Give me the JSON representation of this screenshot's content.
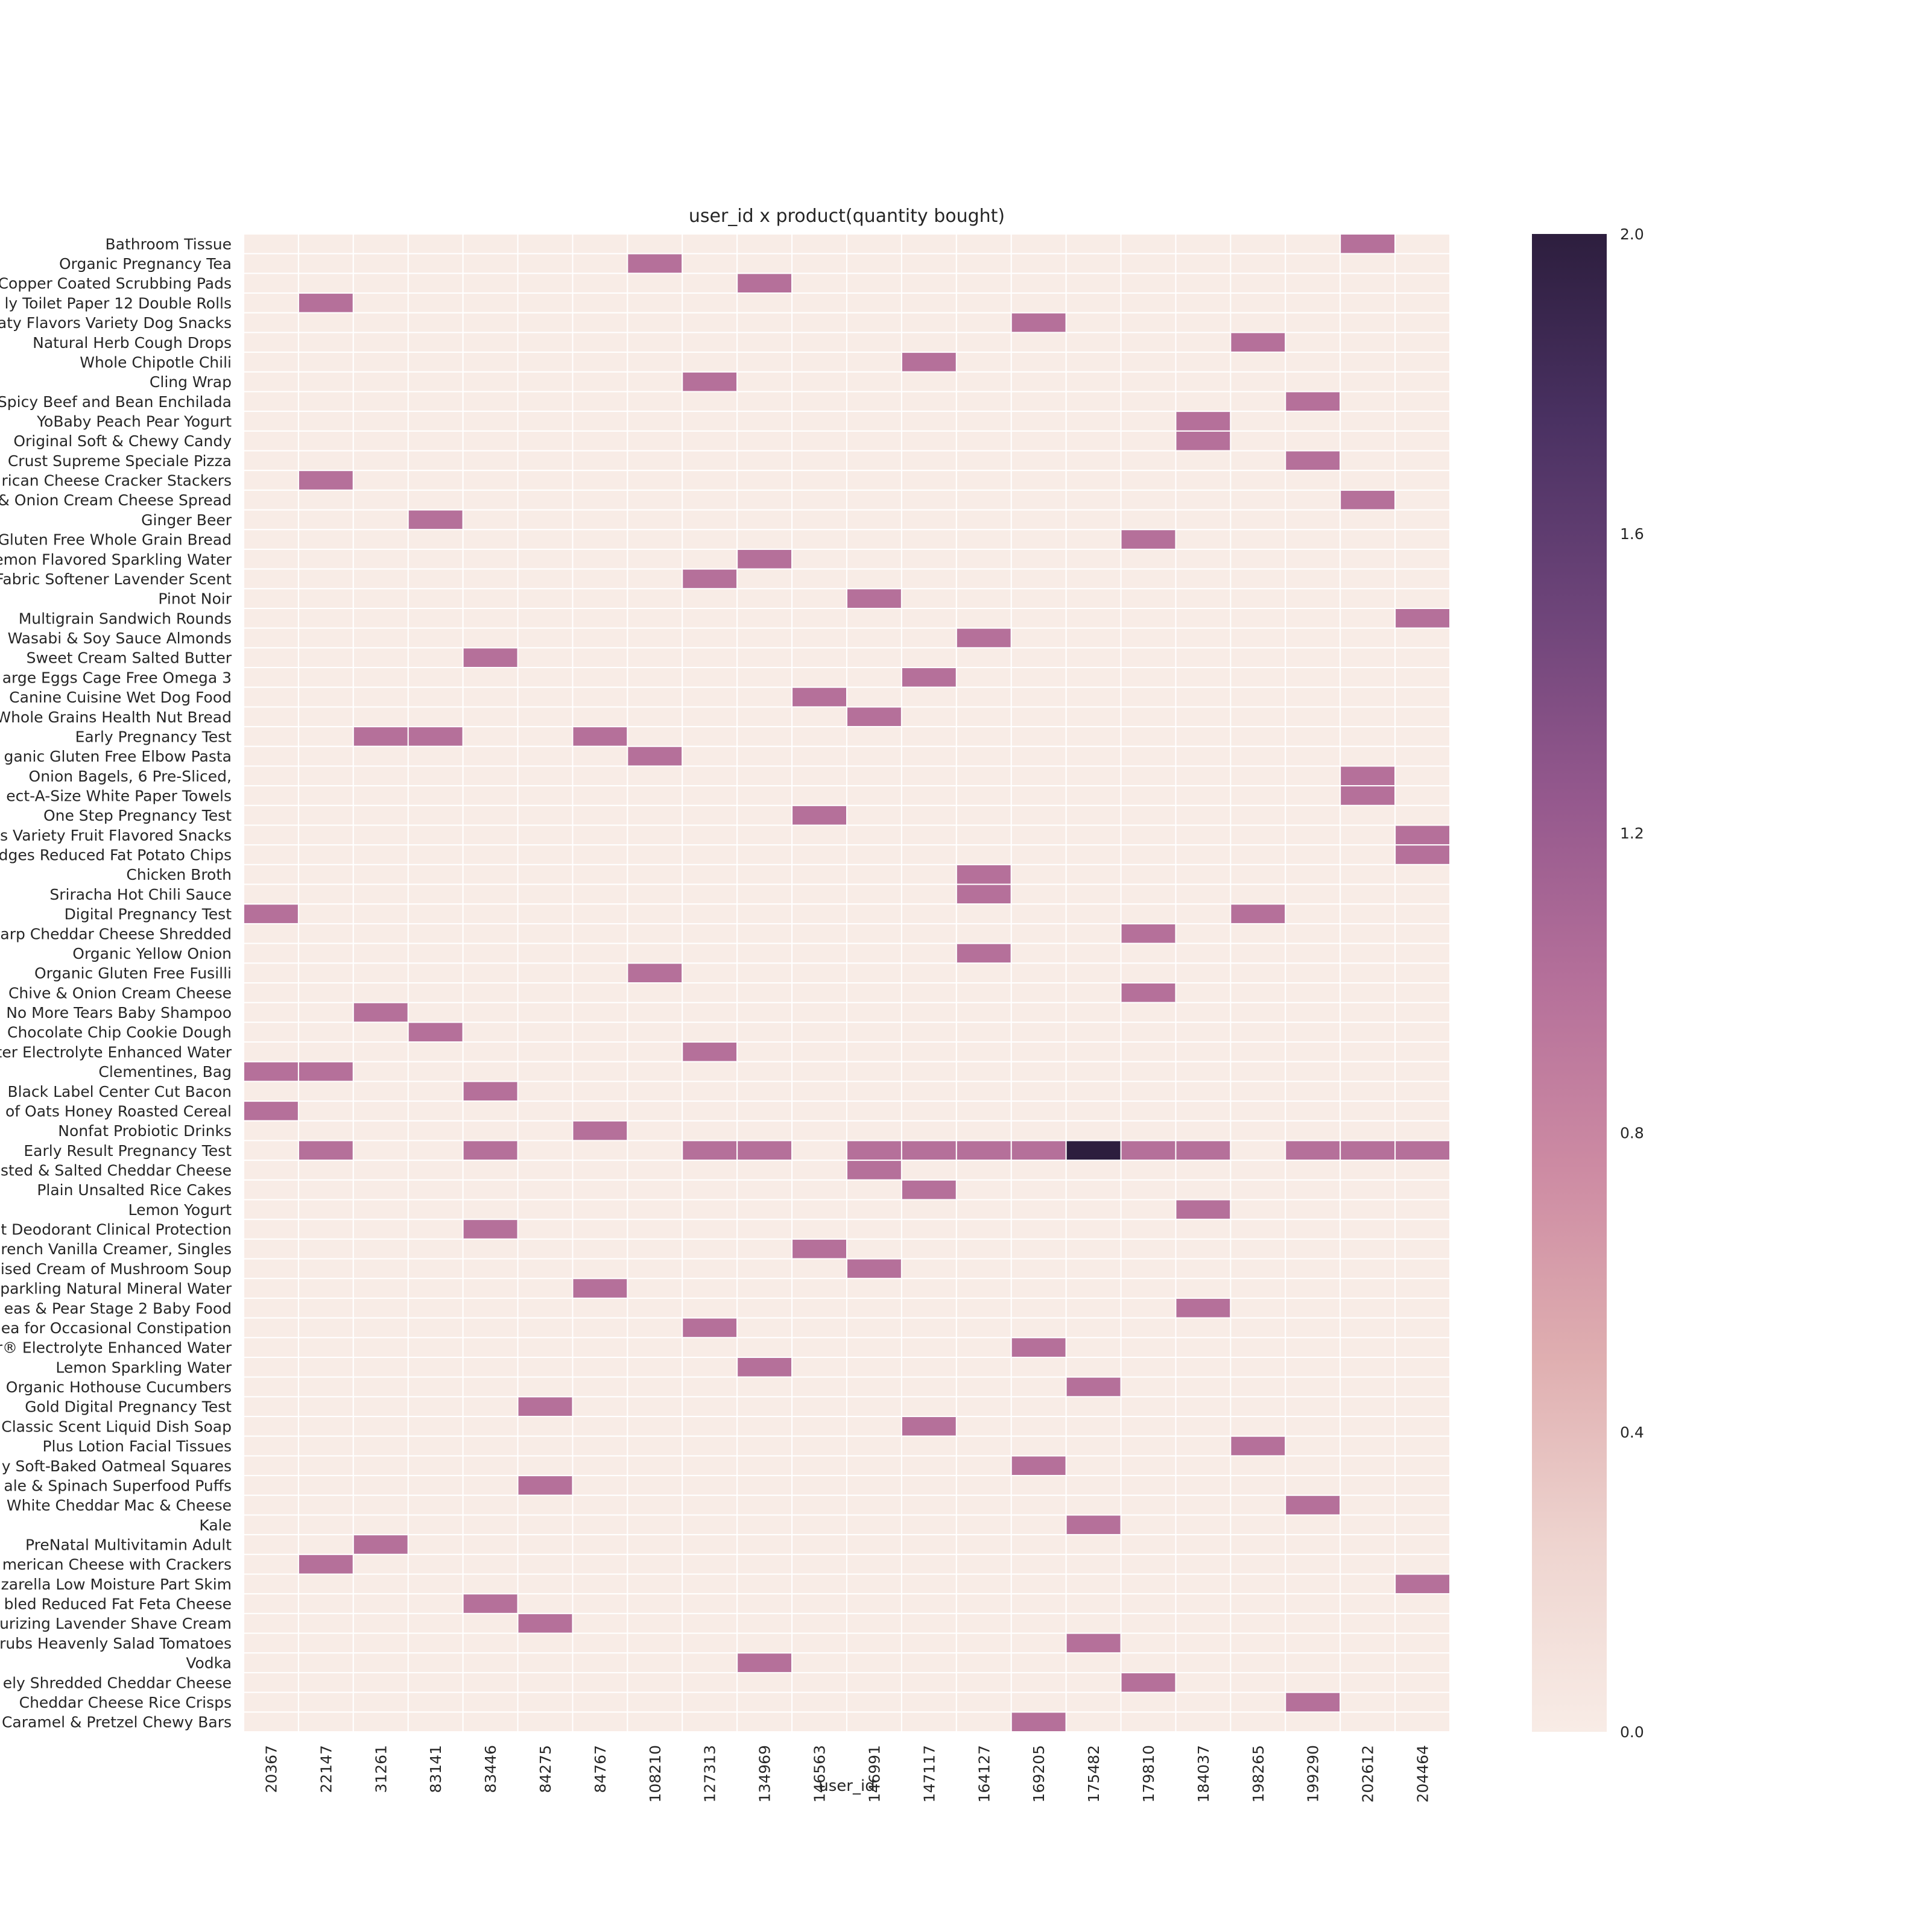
{
  "chart_data": {
    "type": "heatmap",
    "title": "user_id x product(quantity bought)",
    "xlabel": "user_id",
    "ylabel": "",
    "x_categories": [
      "20367",
      "22147",
      "31261",
      "83141",
      "83446",
      "84275",
      "84767",
      "108210",
      "127313",
      "134969",
      "146563",
      "146991",
      "147117",
      "164127",
      "169205",
      "175482",
      "179810",
      "184037",
      "198265",
      "199290",
      "202612",
      "204464"
    ],
    "y_categories": [
      "Bathroom Tissue",
      "Organic Pregnancy Tea",
      "Copper Coated Scrubbing Pads",
      "ly Toilet Paper 12 Double Rolls",
      "aty Flavors Variety Dog Snacks",
      "Natural Herb Cough Drops",
      "Whole Chipotle Chili",
      "Cling Wrap",
      "Spicy Beef and Bean Enchilada",
      "YoBaby Peach Pear Yogurt",
      "Original Soft & Chewy Candy",
      "Crust Supreme Speciale Pizza",
      "rican Cheese Cracker Stackers",
      "& Onion Cream Cheese Spread",
      "Ginger Beer",
      "Gluten Free Whole Grain Bread",
      "emon Flavored Sparkling Water",
      "Fabric Softener Lavender Scent",
      "Pinot Noir",
      "Multigrain Sandwich Rounds",
      "Wasabi & Soy Sauce Almonds",
      "Sweet Cream Salted Butter",
      "arge Eggs Cage Free Omega 3",
      "Canine Cuisine Wet Dog Food",
      "Whole Grains Health Nut Bread",
      "Early Pregnancy Test",
      "ganic Gluten Free Elbow Pasta",
      "Onion Bagels, 6 Pre-Sliced,",
      "ect-A-Size White Paper Towels",
      "One Step Pregnancy Test",
      "s Variety Fruit Flavored Snacks",
      "dges Reduced Fat Potato Chips",
      "Chicken Broth",
      "Sriracha Hot Chili Sauce",
      "Digital Pregnancy Test",
      "arp Cheddar Cheese Shredded",
      "Organic Yellow Onion",
      "Organic Gluten Free Fusilli",
      "Chive & Onion Cream Cheese",
      "No More Tears Baby Shampoo",
      "Chocolate Chip Cookie Dough",
      "ter Electrolyte Enhanced Water",
      "Clementines, Bag",
      "Black Label Center Cut Bacon",
      "of Oats Honey Roasted Cereal",
      "Nonfat Probiotic Drinks",
      "Early Result Pregnancy Test",
      "sted & Salted Cheddar Cheese",
      "Plain Unsalted Rice Cakes",
      "Lemon Yogurt",
      "nt Deodorant Clinical Protection",
      "rench Vanilla Creamer, Singles",
      "ised Cream of Mushroom Soup",
      "Sparkling Natural Mineral Water",
      "eas & Pear Stage 2 Baby Food",
      "ea for Occasional Constipation",
      "r® Electrolyte Enhanced Water",
      "Lemon Sparkling Water",
      "Organic Hothouse Cucumbers",
      "Gold Digital Pregnancy Test",
      "Classic Scent Liquid Dish Soap",
      "Plus Lotion Facial Tissues",
      "y Soft-Baked Oatmeal Squares",
      "ale & Spinach Superfood Puffs",
      "White Cheddar Mac & Cheese",
      "Kale",
      "PreNatal Multivitamin Adult",
      "merican Cheese with Crackers",
      "zarella Low Moisture Part Skim",
      "bled Reduced Fat Feta Cheese",
      "urizing Lavender Shave Cream",
      "rubs Heavenly Salad Tomatoes",
      "Vodka",
      "ely Shredded Cheddar Cheese",
      "Cheddar Cheese Rice Crisps",
      "Caramel & Pretzel Chewy Bars"
    ],
    "cells": [
      [
        0,
        20,
        1
      ],
      [
        1,
        7,
        1
      ],
      [
        2,
        9,
        1
      ],
      [
        3,
        1,
        1
      ],
      [
        4,
        14,
        1
      ],
      [
        5,
        18,
        1
      ],
      [
        6,
        12,
        1
      ],
      [
        7,
        8,
        1
      ],
      [
        8,
        19,
        1
      ],
      [
        9,
        17,
        1
      ],
      [
        10,
        17,
        1
      ],
      [
        11,
        19,
        1
      ],
      [
        12,
        1,
        1
      ],
      [
        13,
        20,
        1
      ],
      [
        14,
        3,
        1
      ],
      [
        15,
        16,
        1
      ],
      [
        16,
        9,
        1
      ],
      [
        17,
        8,
        1
      ],
      [
        18,
        11,
        1
      ],
      [
        19,
        21,
        1
      ],
      [
        20,
        13,
        1
      ],
      [
        21,
        4,
        1
      ],
      [
        22,
        12,
        1
      ],
      [
        23,
        10,
        1
      ],
      [
        24,
        11,
        1
      ],
      [
        25,
        2,
        1
      ],
      [
        25,
        3,
        1
      ],
      [
        25,
        6,
        1
      ],
      [
        26,
        7,
        1
      ],
      [
        27,
        20,
        1
      ],
      [
        28,
        20,
        1
      ],
      [
        29,
        10,
        1
      ],
      [
        30,
        21,
        1
      ],
      [
        31,
        21,
        1
      ],
      [
        32,
        13,
        1
      ],
      [
        33,
        13,
        1
      ],
      [
        34,
        0,
        1
      ],
      [
        34,
        18,
        1
      ],
      [
        35,
        16,
        1
      ],
      [
        36,
        13,
        1
      ],
      [
        37,
        7,
        1
      ],
      [
        38,
        16,
        1
      ],
      [
        39,
        2,
        1
      ],
      [
        40,
        3,
        1
      ],
      [
        41,
        8,
        1
      ],
      [
        42,
        0,
        1
      ],
      [
        42,
        1,
        1
      ],
      [
        43,
        4,
        1
      ],
      [
        44,
        0,
        1
      ],
      [
        45,
        6,
        1
      ],
      [
        46,
        1,
        1
      ],
      [
        46,
        4,
        1
      ],
      [
        46,
        8,
        1
      ],
      [
        46,
        9,
        1
      ],
      [
        46,
        11,
        1
      ],
      [
        46,
        12,
        1
      ],
      [
        46,
        13,
        1
      ],
      [
        46,
        14,
        1
      ],
      [
        46,
        15,
        2
      ],
      [
        46,
        16,
        1
      ],
      [
        46,
        17,
        1
      ],
      [
        46,
        19,
        1
      ],
      [
        46,
        20,
        1
      ],
      [
        46,
        21,
        1
      ],
      [
        47,
        11,
        1
      ],
      [
        48,
        12,
        1
      ],
      [
        49,
        17,
        1
      ],
      [
        50,
        4,
        1
      ],
      [
        51,
        10,
        1
      ],
      [
        52,
        11,
        1
      ],
      [
        53,
        6,
        1
      ],
      [
        54,
        17,
        1
      ],
      [
        55,
        8,
        1
      ],
      [
        56,
        14,
        1
      ],
      [
        57,
        9,
        1
      ],
      [
        58,
        15,
        1
      ],
      [
        59,
        5,
        1
      ],
      [
        60,
        12,
        1
      ],
      [
        61,
        18,
        1
      ],
      [
        62,
        14,
        1
      ],
      [
        63,
        5,
        1
      ],
      [
        64,
        19,
        1
      ],
      [
        65,
        15,
        1
      ],
      [
        66,
        2,
        1
      ],
      [
        67,
        1,
        1
      ],
      [
        68,
        21,
        1
      ],
      [
        69,
        4,
        1
      ],
      [
        70,
        5,
        1
      ],
      [
        71,
        15,
        1
      ],
      [
        72,
        9,
        1
      ],
      [
        73,
        16,
        1
      ],
      [
        74,
        19,
        1
      ],
      [
        75,
        14,
        1
      ]
    ],
    "vmin": 0,
    "vmax": 2,
    "colorbar_ticks": [
      "0.0",
      "0.4",
      "0.8",
      "1.2",
      "1.6",
      "2.0"
    ],
    "colors": {
      "zero": "#f8ece6",
      "one": "#b5709a",
      "two": "#2d1e3e",
      "grid": "#ffffff"
    },
    "colormap": [
      "#f8ece6",
      "#eed4cf",
      "#dfaeb0",
      "#cd8ba3",
      "#b5709a",
      "#94588d",
      "#6d4479",
      "#4a3162",
      "#2d1e3e"
    ]
  }
}
